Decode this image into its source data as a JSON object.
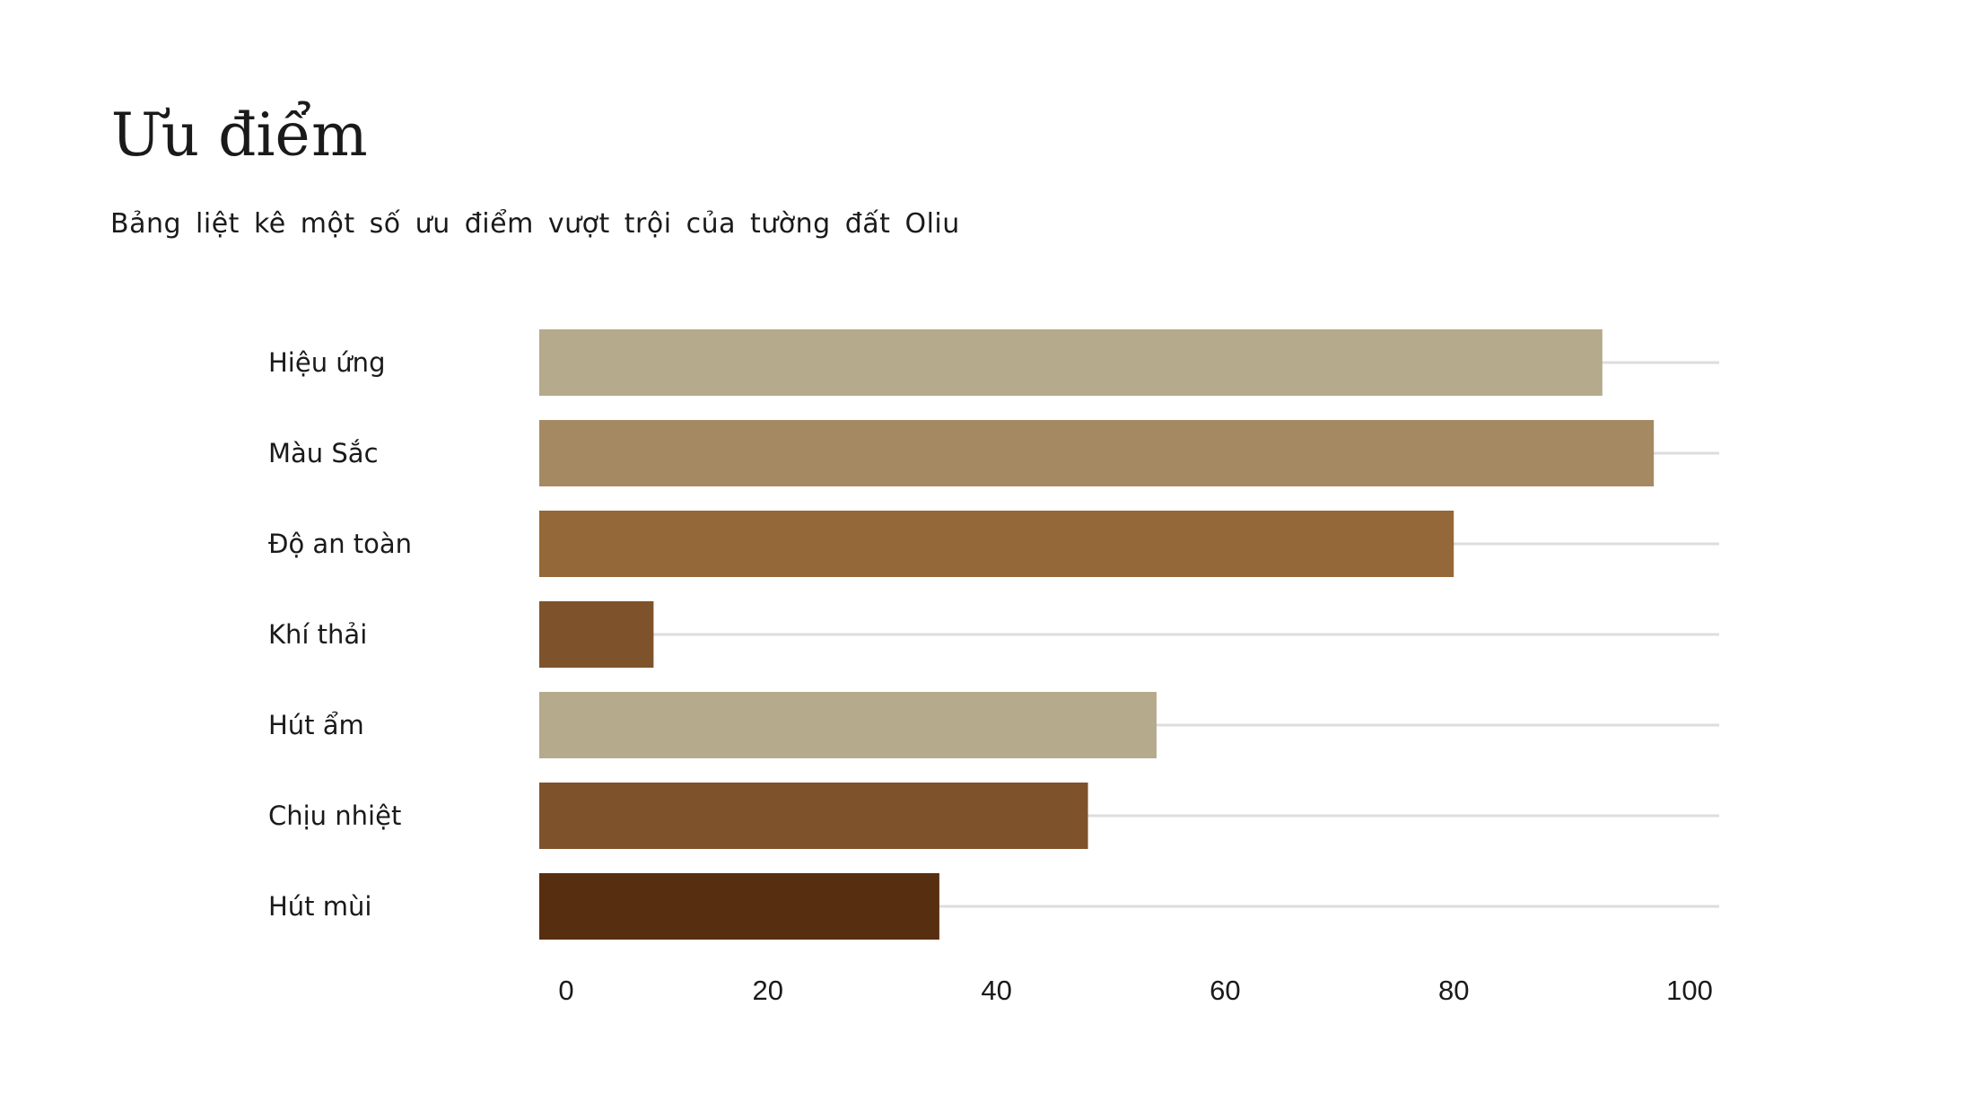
{
  "title": "Ưu điểm",
  "subtitle": "Bảng liệt kê một số ưu điểm vượt trội của tường đất Oliu",
  "chart_data": {
    "type": "bar",
    "orientation": "horizontal",
    "categories": [
      "Hiệu ứng",
      "Màu Sắc",
      "Độ an toàn",
      "Khí thải",
      "Hút ẩm",
      "Chịu nhiệt",
      "Hút mùi"
    ],
    "values": [
      93,
      97.5,
      80,
      10,
      54,
      48,
      35
    ],
    "colors": [
      "#b5aa8b",
      "#a58963",
      "#946838",
      "#7e522a",
      "#b5aa8b",
      "#7e522a",
      "#582e10"
    ],
    "xlim": [
      0,
      100
    ],
    "x_ticks": [
      "0",
      "20",
      "40",
      "60",
      "80",
      "100"
    ],
    "grid": true,
    "grid_color": "#dddddd"
  }
}
